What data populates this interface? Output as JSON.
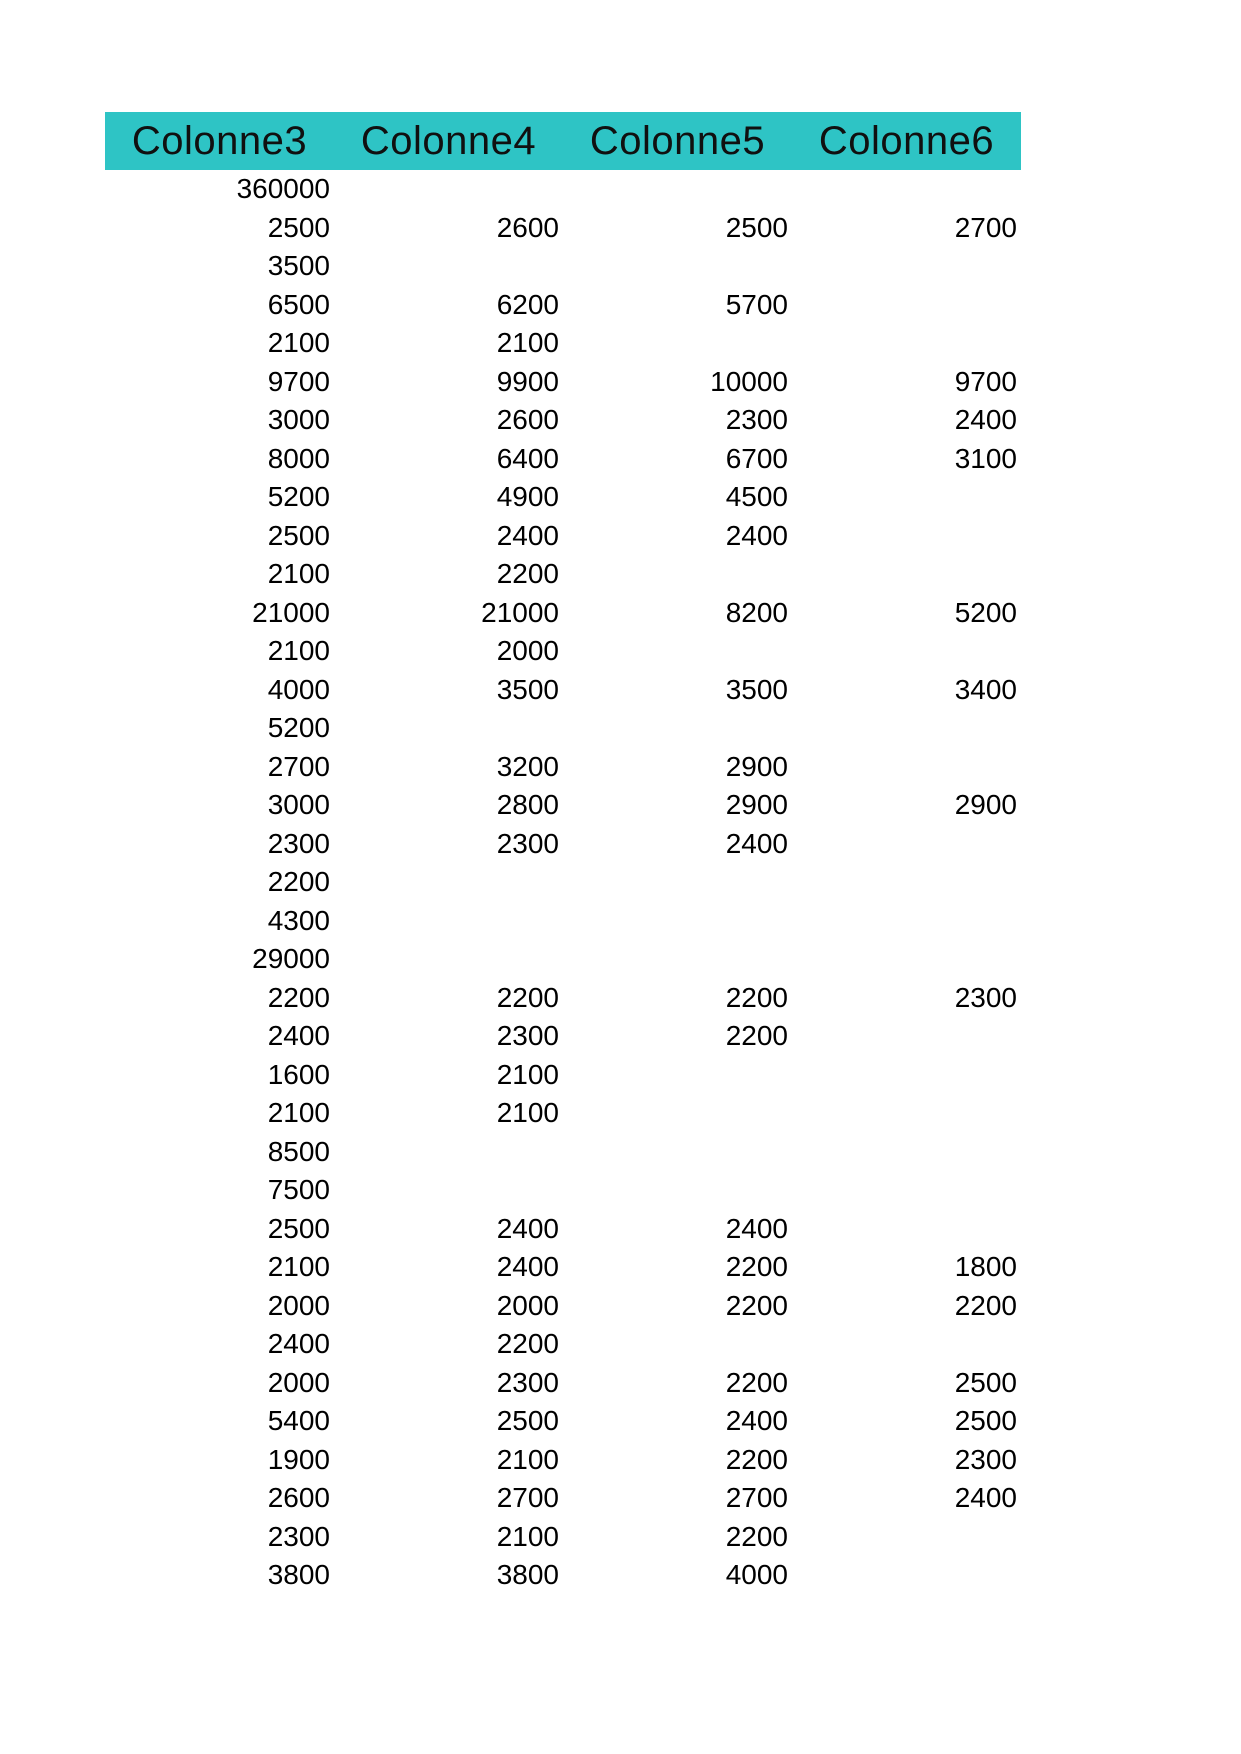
{
  "page": {
    "background": "#ffffff"
  },
  "table": {
    "header": {
      "bg_color": "#2ec4c5",
      "text_color": "#101010",
      "columns": [
        "Colonne3",
        "Colonne4",
        "Colonne5",
        "Colonne6"
      ]
    },
    "cell_text_color": "#000000",
    "rows": [
      [
        "360000",
        "",
        "",
        ""
      ],
      [
        "2500",
        "2600",
        "2500",
        "2700"
      ],
      [
        "3500",
        "",
        "",
        ""
      ],
      [
        "6500",
        "6200",
        "5700",
        ""
      ],
      [
        "2100",
        "2100",
        "",
        ""
      ],
      [
        "9700",
        "9900",
        "10000",
        "9700"
      ],
      [
        "3000",
        "2600",
        "2300",
        "2400"
      ],
      [
        "8000",
        "6400",
        "6700",
        "3100"
      ],
      [
        "5200",
        "4900",
        "4500",
        ""
      ],
      [
        "2500",
        "2400",
        "2400",
        ""
      ],
      [
        "2100",
        "2200",
        "",
        ""
      ],
      [
        "21000",
        "21000",
        "8200",
        "5200"
      ],
      [
        "2100",
        "2000",
        "",
        ""
      ],
      [
        "4000",
        "3500",
        "3500",
        "3400"
      ],
      [
        "5200",
        "",
        "",
        ""
      ],
      [
        "2700",
        "3200",
        "2900",
        ""
      ],
      [
        "3000",
        "2800",
        "2900",
        "2900"
      ],
      [
        "2300",
        "2300",
        "2400",
        ""
      ],
      [
        "2200",
        "",
        "",
        ""
      ],
      [
        "4300",
        "",
        "",
        ""
      ],
      [
        "29000",
        "",
        "",
        ""
      ],
      [
        "2200",
        "2200",
        "2200",
        "2300"
      ],
      [
        "2400",
        "2300",
        "2200",
        ""
      ],
      [
        "1600",
        "2100",
        "",
        ""
      ],
      [
        "2100",
        "2100",
        "",
        ""
      ],
      [
        "8500",
        "",
        "",
        ""
      ],
      [
        "7500",
        "",
        "",
        ""
      ],
      [
        "2500",
        "2400",
        "2400",
        ""
      ],
      [
        "2100",
        "2400",
        "2200",
        "1800"
      ],
      [
        "2000",
        "2000",
        "2200",
        "2200"
      ],
      [
        "2400",
        "2200",
        "",
        ""
      ],
      [
        "2000",
        "2300",
        "2200",
        "2500"
      ],
      [
        "5400",
        "2500",
        "2400",
        "2500"
      ],
      [
        "1900",
        "2100",
        "2200",
        "2300"
      ],
      [
        "2600",
        "2700",
        "2700",
        "2400"
      ],
      [
        "2300",
        "2100",
        "2200",
        ""
      ],
      [
        "3800",
        "3800",
        "4000",
        ""
      ]
    ]
  }
}
